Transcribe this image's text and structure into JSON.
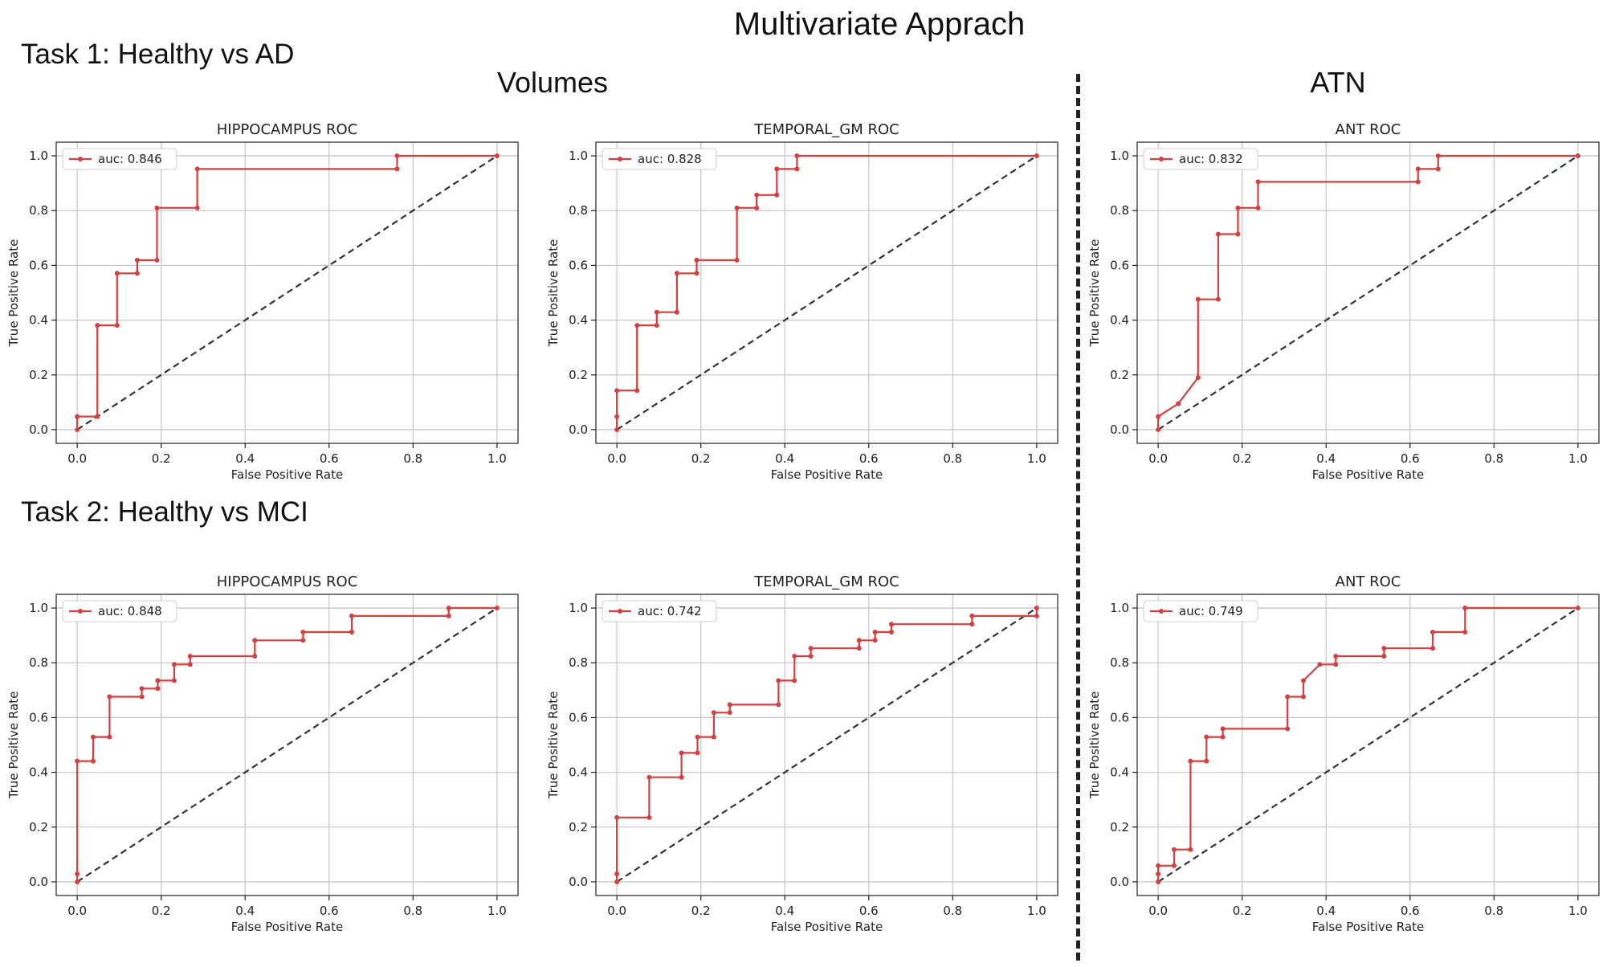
{
  "page": {
    "title": "Multivariate Apprach",
    "task1_label": "Task 1: Healthy vs AD",
    "task2_label": "Task 2: Healthy vs MCI",
    "col_volumes": "Volumes",
    "col_atn": "ATN"
  },
  "chart_data": [
    {
      "type": "line",
      "title": "HIPPOCAMPUS ROC",
      "xlabel": "False Positive Rate",
      "ylabel": "True Positive Rate",
      "legend": "auc: 0.846",
      "xlim": [
        0,
        1
      ],
      "ylim": [
        0,
        1
      ],
      "xticks": [
        "0.0",
        "0.2",
        "0.4",
        "0.6",
        "0.8",
        "1.0"
      ],
      "yticks": [
        "0.0",
        "0.2",
        "0.4",
        "0.6",
        "0.8",
        "1.0"
      ],
      "x": [
        0,
        0,
        0.048,
        0.048,
        0.095,
        0.095,
        0.143,
        0.143,
        0.19,
        0.19,
        0.286,
        0.286,
        0.762,
        0.762,
        1.0
      ],
      "y": [
        0,
        0.048,
        0.048,
        0.381,
        0.381,
        0.571,
        0.571,
        0.619,
        0.619,
        0.81,
        0.81,
        0.952,
        0.952,
        1.0,
        1.0
      ]
    },
    {
      "type": "line",
      "title": "TEMPORAL_GM ROC",
      "xlabel": "False Positive Rate",
      "ylabel": "True Positive Rate",
      "legend": "auc: 0.828",
      "xlim": [
        0,
        1
      ],
      "ylim": [
        0,
        1
      ],
      "xticks": [
        "0.0",
        "0.2",
        "0.4",
        "0.6",
        "0.8",
        "1.0"
      ],
      "yticks": [
        "0.0",
        "0.2",
        "0.4",
        "0.6",
        "0.8",
        "1.0"
      ],
      "x": [
        0,
        0,
        0,
        0.048,
        0.048,
        0.095,
        0.095,
        0.143,
        0.143,
        0.19,
        0.19,
        0.286,
        0.286,
        0.333,
        0.333,
        0.381,
        0.381,
        0.429,
        0.429,
        1.0
      ],
      "y": [
        0,
        0.048,
        0.143,
        0.143,
        0.381,
        0.381,
        0.429,
        0.429,
        0.571,
        0.571,
        0.619,
        0.619,
        0.81,
        0.81,
        0.857,
        0.857,
        0.952,
        0.952,
        1.0,
        1.0
      ]
    },
    {
      "type": "line",
      "title": "ANT ROC",
      "xlabel": "False Positive Rate",
      "ylabel": "True Positive Rate",
      "legend": "auc: 0.832",
      "xlim": [
        0,
        1
      ],
      "ylim": [
        0,
        1
      ],
      "xticks": [
        "0.0",
        "0.2",
        "0.4",
        "0.6",
        "0.8",
        "1.0"
      ],
      "yticks": [
        "0.0",
        "0.2",
        "0.4",
        "0.6",
        "0.8",
        "1.0"
      ],
      "x": [
        0,
        0,
        0.048,
        0.048,
        0.095,
        0.095,
        0.143,
        0.143,
        0.19,
        0.19,
        0.238,
        0.238,
        0.619,
        0.619,
        0.667,
        0.667,
        1.0
      ],
      "y": [
        0,
        0.048,
        0.095,
        0.095,
        0.19,
        0.476,
        0.476,
        0.714,
        0.714,
        0.81,
        0.81,
        0.905,
        0.905,
        0.952,
        0.952,
        1.0,
        1.0
      ]
    },
    {
      "type": "line",
      "title": "HIPPOCAMPUS ROC",
      "xlabel": "False Positive Rate",
      "ylabel": "True Positive Rate",
      "legend": "auc: 0.848",
      "xlim": [
        0,
        1
      ],
      "ylim": [
        0,
        1
      ],
      "xticks": [
        "0.0",
        "0.2",
        "0.4",
        "0.6",
        "0.8",
        "1.0"
      ],
      "yticks": [
        "0.0",
        "0.2",
        "0.4",
        "0.6",
        "0.8",
        "1.0"
      ],
      "x": [
        0,
        0,
        0,
        0.038,
        0.038,
        0.077,
        0.077,
        0.154,
        0.154,
        0.192,
        0.192,
        0.231,
        0.231,
        0.269,
        0.269,
        0.423,
        0.423,
        0.538,
        0.538,
        0.654,
        0.654,
        0.885,
        0.885,
        1.0
      ],
      "y": [
        0,
        0.029,
        0.441,
        0.441,
        0.529,
        0.529,
        0.676,
        0.676,
        0.706,
        0.706,
        0.735,
        0.735,
        0.794,
        0.794,
        0.824,
        0.824,
        0.882,
        0.882,
        0.912,
        0.912,
        0.971,
        0.971,
        1.0,
        1.0
      ]
    },
    {
      "type": "line",
      "title": "TEMPORAL_GM ROC",
      "xlabel": "False Positive Rate",
      "ylabel": "True Positive Rate",
      "legend": "auc: 0.742",
      "xlim": [
        0,
        1
      ],
      "ylim": [
        0,
        1
      ],
      "xticks": [
        "0.0",
        "0.2",
        "0.4",
        "0.6",
        "0.8",
        "1.0"
      ],
      "yticks": [
        "0.0",
        "0.2",
        "0.4",
        "0.6",
        "0.8",
        "1.0"
      ],
      "x": [
        0,
        0,
        0,
        0.077,
        0.077,
        0.154,
        0.154,
        0.192,
        0.192,
        0.231,
        0.231,
        0.269,
        0.269,
        0.385,
        0.385,
        0.423,
        0.423,
        0.462,
        0.462,
        0.577,
        0.577,
        0.615,
        0.615,
        0.654,
        0.654,
        0.846,
        0.846,
        1.0,
        1.0
      ],
      "y": [
        0,
        0.029,
        0.235,
        0.235,
        0.382,
        0.382,
        0.471,
        0.471,
        0.529,
        0.529,
        0.618,
        0.618,
        0.647,
        0.647,
        0.735,
        0.735,
        0.824,
        0.824,
        0.853,
        0.853,
        0.882,
        0.882,
        0.912,
        0.912,
        0.941,
        0.941,
        0.971,
        0.971,
        1.0
      ]
    },
    {
      "type": "line",
      "title": "ANT ROC",
      "xlabel": "False Positive Rate",
      "ylabel": "True Positive Rate",
      "legend": "auc: 0.749",
      "xlim": [
        0,
        1
      ],
      "ylim": [
        0,
        1
      ],
      "xticks": [
        "0.0",
        "0.2",
        "0.4",
        "0.6",
        "0.8",
        "1.0"
      ],
      "yticks": [
        "0.0",
        "0.2",
        "0.4",
        "0.6",
        "0.8",
        "1.0"
      ],
      "x": [
        0,
        0,
        0,
        0.038,
        0.038,
        0.077,
        0.077,
        0.115,
        0.115,
        0.154,
        0.154,
        0.308,
        0.308,
        0.346,
        0.346,
        0.385,
        0.423,
        0.423,
        0.538,
        0.538,
        0.654,
        0.654,
        0.731,
        0.731,
        1.0
      ],
      "y": [
        0,
        0.029,
        0.059,
        0.059,
        0.118,
        0.118,
        0.441,
        0.441,
        0.529,
        0.529,
        0.559,
        0.559,
        0.676,
        0.676,
        0.735,
        0.794,
        0.794,
        0.824,
        0.824,
        0.853,
        0.853,
        0.912,
        0.912,
        1.0,
        1.0
      ]
    }
  ]
}
